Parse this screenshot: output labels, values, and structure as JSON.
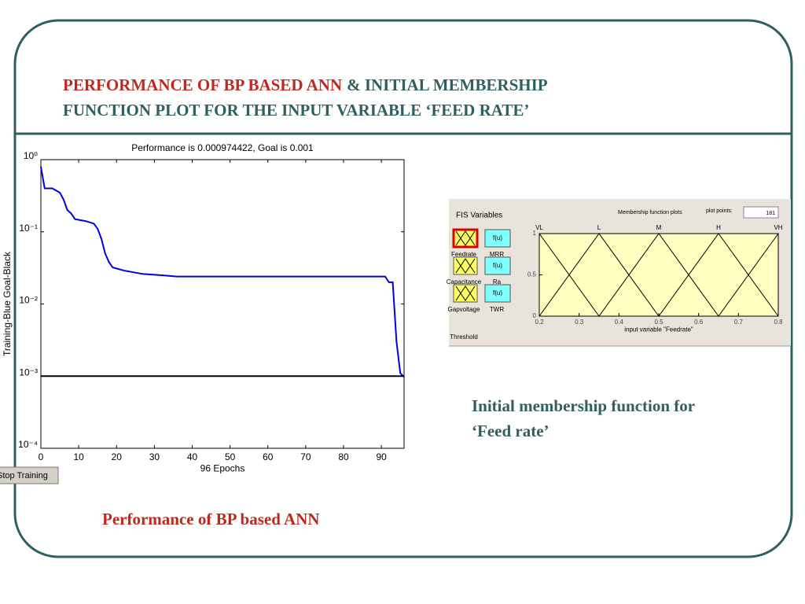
{
  "slide": {
    "title_part1": "PERFORMANCE OF BP BASED ANN",
    "title_part2": "& INITIAL MEMBERSHIP",
    "title_line2": "FUNCTION PLOT FOR THE INPUT VARIABLE ‘FEED RATE’",
    "caption_right_1": "Initial membership function for",
    "caption_right_2": "‘Feed rate’",
    "caption_left": "Performance of BP based ANN",
    "button": "Stop Training"
  },
  "fis": {
    "panel_title": "FIS Variables",
    "inputs": [
      "Feedrate",
      "Capacitance",
      "Gapvoltage",
      "Threshold"
    ],
    "outputs": [
      "MRR",
      "Ra",
      "TWR"
    ],
    "output_box": "f(u)",
    "plots_title": "Membership function plots",
    "plot_points_label": "plot points:",
    "plot_points": "181"
  },
  "chart_data": [
    {
      "type": "line",
      "title": "Performance is 0.000974422, Goal is 0.001",
      "xlabel": "96 Epochs",
      "ylabel": "Training-Blue  Goal-Black",
      "log_y": true,
      "xlim": [
        0,
        96
      ],
      "xticks": [
        0,
        10,
        20,
        30,
        40,
        50,
        60,
        70,
        80,
        90
      ],
      "ylim": [
        0.0001,
        1
      ],
      "yticks": [
        {
          "value": 1,
          "label": "10⁰"
        },
        {
          "value": 0.1,
          "label": "10⁻¹"
        },
        {
          "value": 0.01,
          "label": "10⁻²"
        },
        {
          "value": 0.001,
          "label": "10⁻³"
        },
        {
          "value": 0.0001,
          "label": "10⁻⁴"
        }
      ],
      "series": [
        {
          "name": "Training",
          "color": "#0000dd",
          "x": [
            0,
            1,
            3,
            5,
            6,
            7,
            8,
            9,
            12,
            14,
            15,
            16,
            17,
            18,
            19,
            22,
            27,
            32,
            36,
            50,
            70,
            91,
            92,
            93,
            94,
            95,
            96
          ],
          "values": [
            0.8,
            0.4,
            0.4,
            0.35,
            0.28,
            0.2,
            0.18,
            0.15,
            0.14,
            0.13,
            0.11,
            0.08,
            0.05,
            0.038,
            0.032,
            0.029,
            0.026,
            0.025,
            0.024,
            0.024,
            0.024,
            0.024,
            0.02,
            0.02,
            0.003,
            0.0011,
            0.000974422
          ]
        },
        {
          "name": "Goal",
          "color": "#000000",
          "x": [
            0,
            96
          ],
          "values": [
            0.001,
            0.001
          ]
        }
      ]
    },
    {
      "type": "line",
      "xlabel": "input variable \"Feedrate\"",
      "background": "#ffffc0",
      "xlim": [
        0.2,
        0.8
      ],
      "xticks": [
        0.2,
        0.3,
        0.4,
        0.5,
        0.6,
        0.7,
        0.8
      ],
      "ylim": [
        0,
        1
      ],
      "yticks": [
        0,
        0.5,
        1
      ],
      "series": [
        {
          "name": "VL",
          "color": "#000000",
          "x": [
            0.2,
            0.35
          ],
          "values": [
            1,
            0
          ]
        },
        {
          "name": "L",
          "color": "#000000",
          "x": [
            0.2,
            0.35,
            0.5
          ],
          "values": [
            0,
            1,
            0
          ]
        },
        {
          "name": "M",
          "color": "#000000",
          "x": [
            0.35,
            0.5,
            0.65
          ],
          "values": [
            0,
            1,
            0
          ]
        },
        {
          "name": "H",
          "color": "#000000",
          "x": [
            0.5,
            0.65,
            0.8
          ],
          "values": [
            0,
            1,
            0
          ]
        },
        {
          "name": "VH",
          "color": "#000000",
          "x": [
            0.65,
            0.8
          ],
          "values": [
            0,
            1
          ]
        }
      ]
    }
  ]
}
